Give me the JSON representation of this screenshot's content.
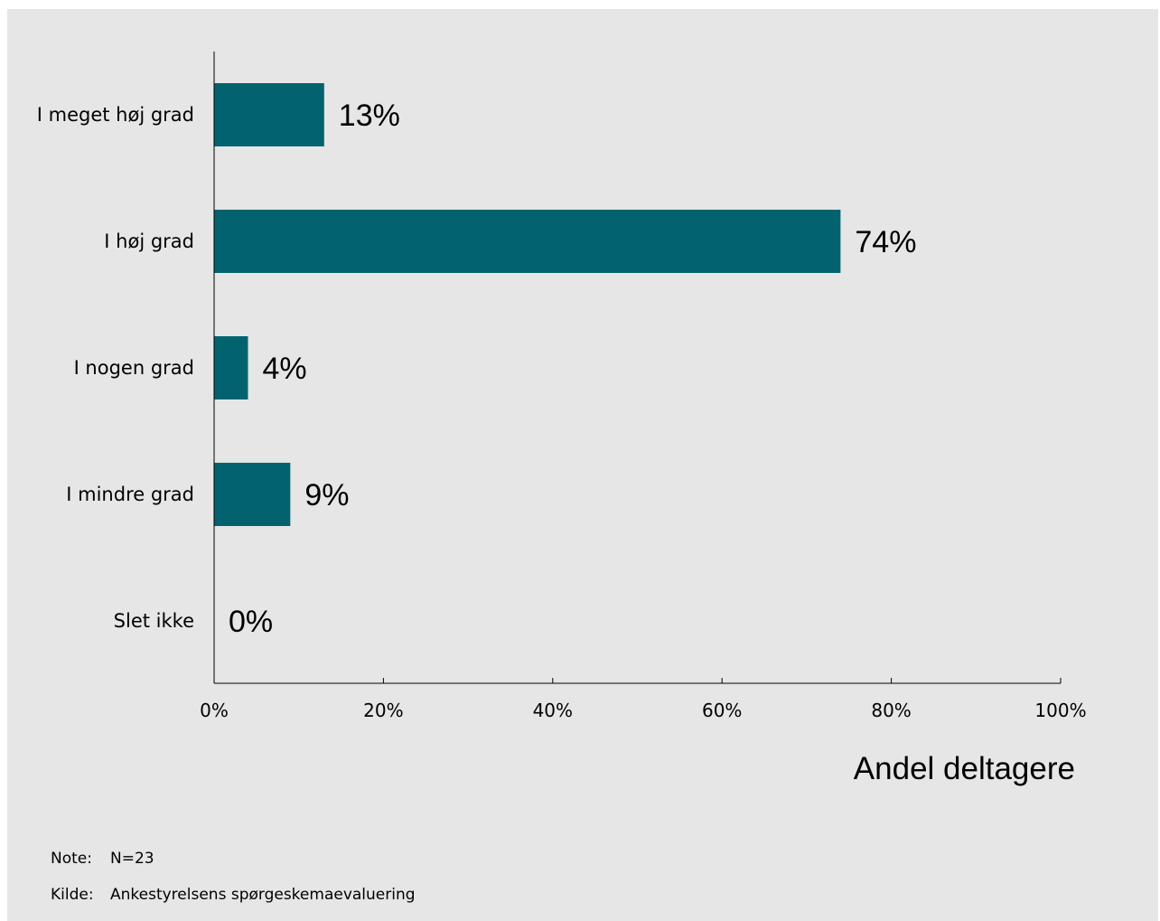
{
  "chart_data": {
    "type": "bar",
    "orientation": "horizontal",
    "categories": [
      "I meget høj grad",
      "I høj grad",
      "I nogen grad",
      "I mindre grad",
      "Slet ikke"
    ],
    "values": [
      13,
      74,
      4,
      9,
      0
    ],
    "value_labels": [
      "13%",
      "74%",
      "4%",
      "9%",
      "0%"
    ],
    "xlim": [
      0,
      100
    ],
    "xticks": [
      0,
      20,
      40,
      60,
      80,
      100
    ],
    "xtick_labels": [
      "0%",
      "20%",
      "40%",
      "60%",
      "80%",
      "100%"
    ],
    "xlabel": "Andel deltagere",
    "bar_color": "#02636f",
    "background_color": "#e6e6e6",
    "grid": false
  },
  "footnotes": {
    "note_key": "Note:",
    "note_text": "N=23",
    "source_key": "Kilde:",
    "source_text": "Ankestyrelsens spørgeskemaevaluering"
  }
}
